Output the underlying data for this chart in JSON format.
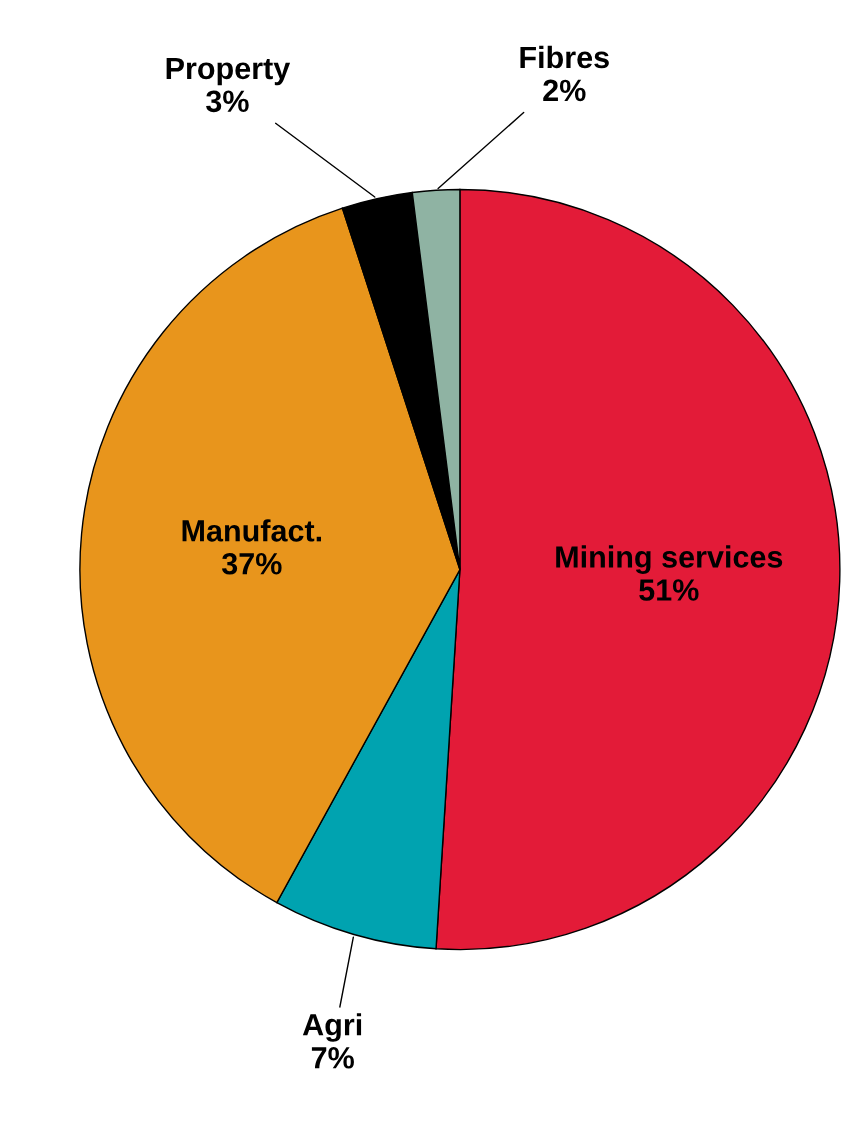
{
  "chart_data": {
    "type": "pie",
    "categories": [
      "Mining services",
      "Agri",
      "Manufact.",
      "Property",
      "Fibres"
    ],
    "values": [
      51,
      7,
      37,
      3,
      2
    ],
    "value_labels": [
      "51%",
      "7%",
      "37%",
      "3%",
      "2%"
    ],
    "colors": [
      "#e31b38",
      "#00a3b0",
      "#e8951c",
      "#000000",
      "#8fb3a3"
    ]
  }
}
